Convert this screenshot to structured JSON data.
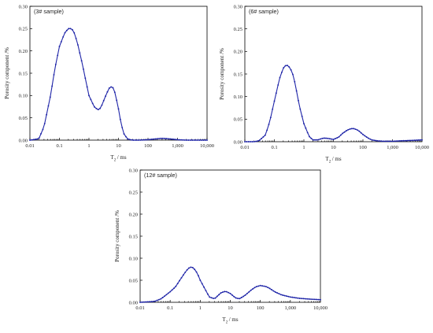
{
  "figure": {
    "series_color": "#1f25a8",
    "frame_color": "#000000"
  },
  "chart_data": [
    {
      "type": "line",
      "panel_label": "(3# sample)",
      "xlabel_main": "T",
      "xlabel_sub": "2",
      "xlabel_unit": "/ ms",
      "ylabel": "Porosity component /%",
      "xscale": "log",
      "xlim": [
        0.01,
        10000
      ],
      "ylim": [
        0,
        0.3
      ],
      "x_ticks": [
        0.01,
        0.1,
        1,
        10,
        100,
        1000,
        10000
      ],
      "x_tick_labels": [
        "0.01",
        "0.1",
        "1",
        "10",
        "100",
        "1,000",
        "10,000"
      ],
      "y_ticks": [
        0,
        0.05,
        0.1,
        0.15,
        0.2,
        0.25,
        0.3
      ],
      "y_tick_labels": [
        "0.00",
        "0.05",
        "0.10",
        "0.15",
        "0.20",
        "0.25",
        "0.30"
      ],
      "grid": false,
      "series": [
        {
          "x": [
            0.01,
            0.02,
            0.03,
            0.05,
            0.07,
            0.1,
            0.15,
            0.2,
            0.25,
            0.3,
            0.4,
            0.6,
            0.8,
            1,
            1.5,
            2,
            2.5,
            3,
            4,
            5,
            6,
            7,
            8,
            10,
            12,
            15,
            20,
            25,
            30,
            50,
            100,
            200,
            300,
            500,
            1000,
            2000,
            5000,
            10000
          ],
          "y": [
            0,
            0.003,
            0.03,
            0.1,
            0.16,
            0.21,
            0.24,
            0.25,
            0.25,
            0.245,
            0.22,
            0.17,
            0.13,
            0.1,
            0.075,
            0.068,
            0.072,
            0.085,
            0.105,
            0.118,
            0.12,
            0.115,
            0.1,
            0.07,
            0.04,
            0.015,
            0.003,
            0.001,
            0,
            0,
            0.001,
            0.003,
            0.004,
            0.003,
            0.001,
            0,
            0,
            0
          ]
        }
      ]
    },
    {
      "type": "line",
      "panel_label": "(6# sample)",
      "xlabel_main": "T",
      "xlabel_sub": "2",
      "xlabel_unit": "/ ms",
      "ylabel": "Porosity component /%",
      "xscale": "log",
      "xlim": [
        0.01,
        10000
      ],
      "ylim": [
        0,
        0.3
      ],
      "x_ticks": [
        0.01,
        0.1,
        1,
        10,
        100,
        1000,
        10000
      ],
      "x_tick_labels": [
        "0.01",
        "0.1",
        "1",
        "10",
        "100",
        "1,000",
        "10,000"
      ],
      "y_ticks": [
        0,
        0.05,
        0.1,
        0.15,
        0.2,
        0.25,
        0.3
      ],
      "y_tick_labels": [
        "0.00",
        "0.05",
        "0.10",
        "0.15",
        "0.20",
        "0.25",
        "0.30"
      ],
      "grid": false,
      "series": [
        {
          "x": [
            0.01,
            0.02,
            0.03,
            0.05,
            0.07,
            0.1,
            0.15,
            0.2,
            0.25,
            0.3,
            0.4,
            0.5,
            0.7,
            1,
            1.5,
            2,
            3,
            4,
            5,
            7,
            10,
            15,
            20,
            30,
            40,
            50,
            70,
            100,
            150,
            200,
            300,
            500,
            1000,
            2000,
            5000,
            10000
          ],
          "y": [
            0,
            0,
            0.002,
            0.015,
            0.045,
            0.09,
            0.14,
            0.163,
            0.17,
            0.168,
            0.155,
            0.13,
            0.08,
            0.04,
            0.012,
            0.004,
            0.004,
            0.007,
            0.008,
            0.007,
            0.005,
            0.01,
            0.018,
            0.026,
            0.029,
            0.029,
            0.025,
            0.016,
            0.008,
            0.004,
            0.002,
            0.001,
            0.001,
            0.002,
            0.003,
            0.004
          ]
        }
      ]
    },
    {
      "type": "line",
      "panel_label": "(12# sample)",
      "xlabel_main": "T",
      "xlabel_sub": "2",
      "xlabel_unit": "/ ms",
      "ylabel": "Porosity component /%",
      "xscale": "log",
      "xlim": [
        0.01,
        10000
      ],
      "ylim": [
        0,
        0.3
      ],
      "x_ticks": [
        0.01,
        0.1,
        1,
        10,
        100,
        1000,
        10000
      ],
      "x_tick_labels": [
        "0.01",
        "0.1",
        "1",
        "10",
        "100",
        "1,000",
        "10,000"
      ],
      "y_ticks": [
        0,
        0.05,
        0.1,
        0.15,
        0.2,
        0.25,
        0.3
      ],
      "y_tick_labels": [
        "0.00",
        "0.05",
        "0.10",
        "0.15",
        "0.20",
        "0.25",
        "0.30"
      ],
      "grid": false,
      "series": [
        {
          "x": [
            0.01,
            0.03,
            0.05,
            0.1,
            0.15,
            0.2,
            0.3,
            0.4,
            0.5,
            0.6,
            0.8,
            1,
            1.5,
            2,
            3,
            4,
            5,
            7,
            10,
            15,
            20,
            30,
            50,
            70,
            100,
            150,
            200,
            300,
            500,
            1000,
            2000,
            5000,
            10000
          ],
          "y": [
            0,
            0.002,
            0.008,
            0.024,
            0.035,
            0.048,
            0.066,
            0.077,
            0.08,
            0.078,
            0.066,
            0.05,
            0.028,
            0.012,
            0.008,
            0.016,
            0.022,
            0.025,
            0.02,
            0.01,
            0.008,
            0.015,
            0.028,
            0.035,
            0.038,
            0.036,
            0.032,
            0.024,
            0.017,
            0.012,
            0.009,
            0.007,
            0.006
          ]
        }
      ]
    }
  ]
}
